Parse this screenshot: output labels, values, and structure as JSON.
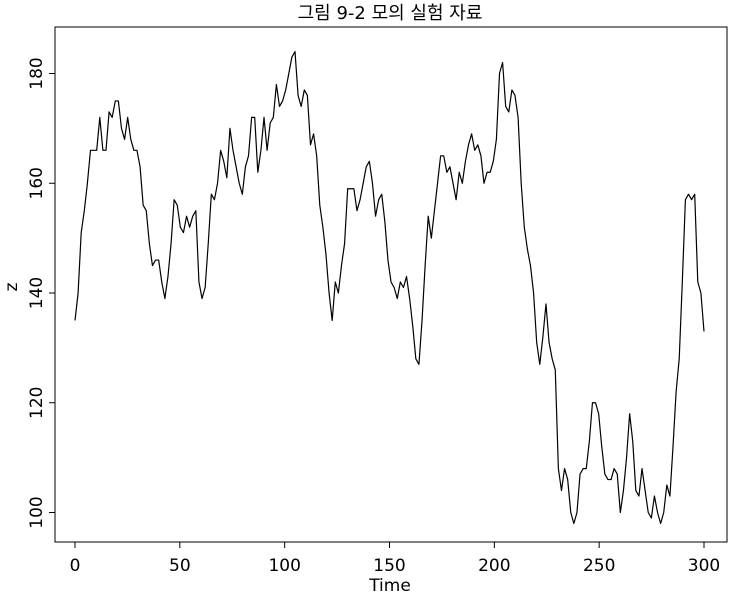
{
  "chart_data": {
    "type": "line",
    "title": "그림 9-2 모의 실험 자료",
    "xlabel": "Time",
    "ylabel": "z",
    "xlim": [
      0,
      300
    ],
    "ylim": [
      95,
      188
    ],
    "x_ticks": [
      0,
      50,
      100,
      150,
      200,
      250,
      300
    ],
    "y_ticks": [
      100,
      120,
      140,
      160,
      180
    ],
    "grid": false,
    "series": [
      {
        "values": [
          135,
          140,
          151,
          155,
          160,
          166,
          166,
          166,
          172,
          166,
          166,
          173,
          172,
          175,
          175,
          170,
          168,
          172,
          168,
          166,
          166,
          163,
          156,
          155,
          149,
          145,
          146,
          146,
          142,
          139,
          143,
          149,
          157,
          156,
          152,
          151,
          154,
          152,
          154,
          155,
          142,
          139,
          141,
          149,
          158,
          157,
          160,
          166,
          164,
          161,
          170,
          166,
          163,
          160,
          158,
          163,
          165,
          172,
          172,
          162,
          166,
          172,
          166,
          171,
          172,
          178,
          174,
          175,
          177,
          180,
          183,
          184,
          176,
          174,
          177,
          176,
          167,
          169,
          165,
          156,
          152,
          147,
          140,
          135,
          142,
          140,
          145,
          149,
          159,
          159,
          159,
          155,
          157,
          160,
          163,
          164,
          160,
          154,
          157,
          158,
          153,
          146,
          142,
          141,
          139,
          142,
          141,
          143,
          139,
          134,
          128,
          127,
          135,
          145,
          154,
          150,
          155,
          160,
          165,
          165,
          162,
          163,
          160,
          157,
          162,
          160,
          164,
          167,
          169,
          166,
          167,
          165,
          160,
          162,
          162,
          164,
          168,
          180,
          182,
          174,
          173,
          177,
          176,
          172,
          160,
          152,
          148,
          145,
          140,
          131,
          127,
          132,
          138,
          131,
          128,
          126,
          108,
          104,
          108,
          106,
          100,
          98,
          100,
          107,
          108,
          108,
          113,
          120,
          120,
          118,
          112,
          107,
          106,
          106,
          108,
          107,
          100,
          104,
          110,
          118,
          113,
          104,
          103,
          108,
          104,
          100,
          99,
          103,
          100,
          98,
          100,
          105,
          103,
          112,
          122,
          128,
          142,
          157,
          158,
          157,
          158,
          142,
          140,
          133
        ]
      }
    ]
  }
}
